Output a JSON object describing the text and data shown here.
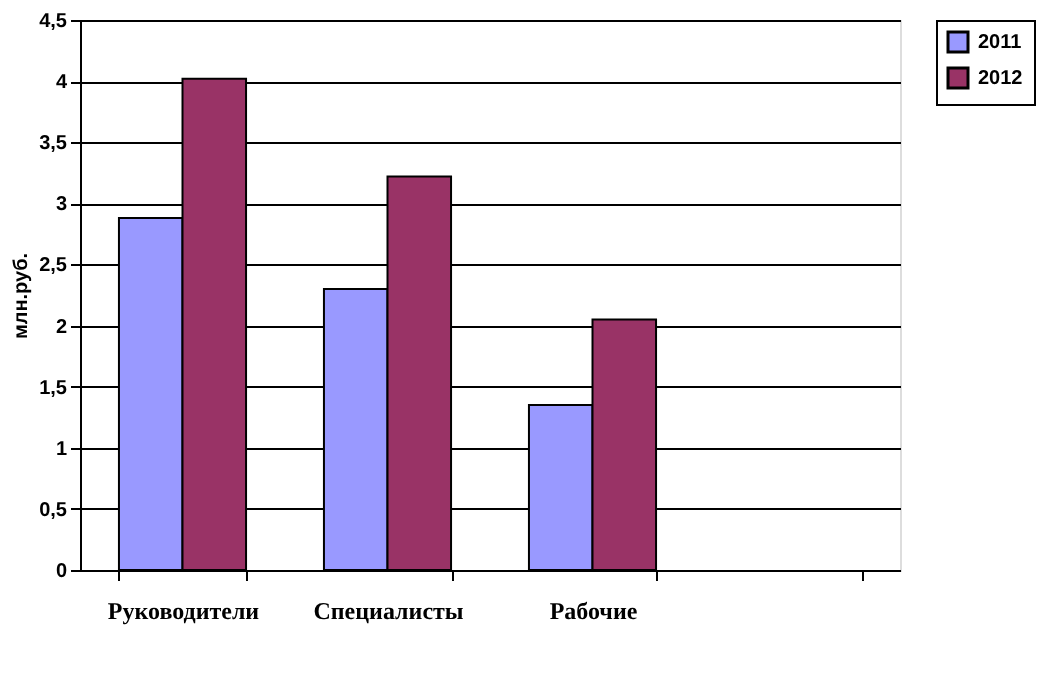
{
  "chart_data": {
    "type": "bar",
    "categories": [
      "Руководители",
      "Специалисты",
      "Рабочие",
      null
    ],
    "series": [
      {
        "name": "2011",
        "color": "#9999ff",
        "values": [
          2.88,
          2.3,
          1.35,
          null
        ]
      },
      {
        "name": "2012",
        "color": "#993366",
        "values": [
          4.02,
          3.22,
          2.05,
          null
        ]
      }
    ],
    "ylabel": "млн.руб.",
    "ylim": [
      0,
      4.5
    ],
    "yticks": [
      0,
      {
        "value": 0.5,
        "label": "0,5"
      },
      1,
      {
        "value": 1.5,
        "label": "1,5"
      },
      2,
      {
        "value": 2.5,
        "label": "2,5"
      },
      3,
      {
        "value": 3.5,
        "label": "3,5"
      },
      4,
      {
        "value": 4.5,
        "label": "4,5"
      }
    ],
    "grid": "y",
    "legend": "right"
  }
}
